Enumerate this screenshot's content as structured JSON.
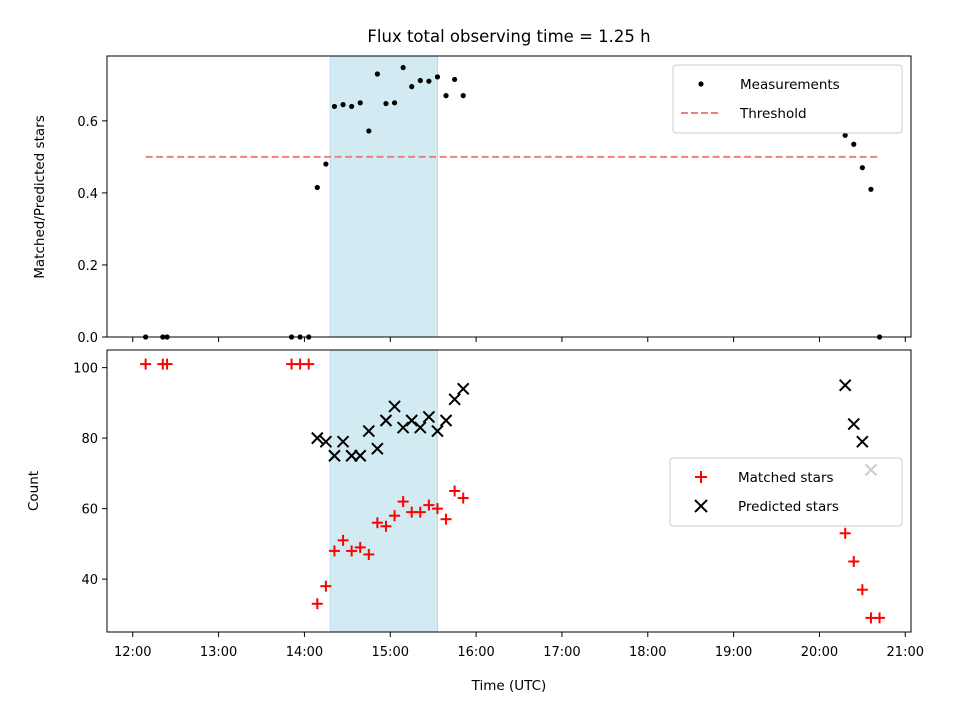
{
  "chart_data": [
    {
      "type": "scatter",
      "title": "Flux total observing time = 1.25 h",
      "ylabel": "Matched/Predicted stars",
      "xlim": [
        "11:42",
        "21:04"
      ],
      "ylim": [
        0,
        0.78
      ],
      "xticks": [
        "12:00",
        "13:00",
        "14:00",
        "15:00",
        "16:00",
        "17:00",
        "18:00",
        "19:00",
        "20:00",
        "21:00"
      ],
      "yticks": [
        0.0,
        0.2,
        0.4,
        0.6
      ],
      "ytick_labels": [
        "0.0",
        "0.2",
        "0.4",
        "0.6"
      ],
      "shaded_span": [
        "14:18",
        "15:33"
      ],
      "shade_color": "#add8e6",
      "legend_position": "top-right",
      "series": [
        {
          "name": "Measurements",
          "type": "scatter",
          "marker": "dot",
          "color": "#000000",
          "points": [
            [
              "12:09",
              0.0
            ],
            [
              "12:21",
              0.0
            ],
            [
              "12:24",
              0.0
            ],
            [
              "13:51",
              0.0
            ],
            [
              "13:57",
              0.0
            ],
            [
              "14:03",
              0.0
            ],
            [
              "14:09",
              0.415
            ],
            [
              "14:15",
              0.48
            ],
            [
              "14:21",
              0.64
            ],
            [
              "14:27",
              0.645
            ],
            [
              "14:33",
              0.64
            ],
            [
              "14:39",
              0.65
            ],
            [
              "14:45",
              0.572
            ],
            [
              "14:51",
              0.73
            ],
            [
              "14:57",
              0.648
            ],
            [
              "15:03",
              0.65
            ],
            [
              "15:09",
              0.748
            ],
            [
              "15:15",
              0.695
            ],
            [
              "15:21",
              0.712
            ],
            [
              "15:27",
              0.71
            ],
            [
              "15:33",
              0.722
            ],
            [
              "15:39",
              0.67
            ],
            [
              "15:45",
              0.715
            ],
            [
              "15:51",
              0.67
            ],
            [
              "20:18",
              0.56
            ],
            [
              "20:24",
              0.535
            ],
            [
              "20:30",
              0.47
            ],
            [
              "20:36",
              0.41
            ],
            [
              "20:42",
              0.0
            ]
          ]
        },
        {
          "name": "Threshold",
          "type": "line",
          "style": "dashed",
          "color": "#f08080",
          "points": [
            [
              "12:09",
              0.5
            ],
            [
              "20:42",
              0.5
            ]
          ]
        }
      ]
    },
    {
      "type": "scatter",
      "title": "",
      "xlabel": "Time (UTC)",
      "ylabel": "Count",
      "xlim": [
        "11:42",
        "21:04"
      ],
      "ylim": [
        25,
        105
      ],
      "xticks": [
        "12:00",
        "13:00",
        "14:00",
        "15:00",
        "16:00",
        "17:00",
        "18:00",
        "19:00",
        "20:00",
        "21:00"
      ],
      "yticks": [
        40,
        60,
        80,
        100
      ],
      "shaded_span": [
        "14:18",
        "15:33"
      ],
      "shade_color": "#add8e6",
      "legend_position": "center-right",
      "series": [
        {
          "name": "Matched stars",
          "type": "scatter",
          "marker": "plus",
          "color": "#ff0000",
          "points": [
            [
              "12:09",
              101
            ],
            [
              "12:21",
              101
            ],
            [
              "12:24",
              101
            ],
            [
              "13:51",
              101
            ],
            [
              "13:57",
              101
            ],
            [
              "14:03",
              101
            ],
            [
              "14:09",
              33
            ],
            [
              "14:15",
              38
            ],
            [
              "14:21",
              48
            ],
            [
              "14:27",
              51
            ],
            [
              "14:33",
              48
            ],
            [
              "14:39",
              49
            ],
            [
              "14:45",
              47
            ],
            [
              "14:51",
              56
            ],
            [
              "14:57",
              55
            ],
            [
              "15:03",
              58
            ],
            [
              "15:09",
              62
            ],
            [
              "15:15",
              59
            ],
            [
              "15:21",
              59
            ],
            [
              "15:27",
              61
            ],
            [
              "15:33",
              60
            ],
            [
              "15:39",
              57
            ],
            [
              "15:45",
              65
            ],
            [
              "15:51",
              63
            ],
            [
              "20:18",
              53
            ],
            [
              "20:24",
              45
            ],
            [
              "20:30",
              37
            ],
            [
              "20:36",
              29
            ],
            [
              "20:42",
              29
            ]
          ]
        },
        {
          "name": "Predicted stars",
          "type": "scatter",
          "marker": "x",
          "color": "#000000",
          "points": [
            [
              "14:09",
              80
            ],
            [
              "14:15",
              79
            ],
            [
              "14:21",
              75
            ],
            [
              "14:27",
              79
            ],
            [
              "14:33",
              75
            ],
            [
              "14:39",
              75
            ],
            [
              "14:45",
              82
            ],
            [
              "14:51",
              77
            ],
            [
              "14:57",
              85
            ],
            [
              "15:03",
              89
            ],
            [
              "15:09",
              83
            ],
            [
              "15:15",
              85
            ],
            [
              "15:21",
              83
            ],
            [
              "15:27",
              86
            ],
            [
              "15:33",
              82
            ],
            [
              "15:39",
              85
            ],
            [
              "15:45",
              91
            ],
            [
              "15:51",
              94
            ],
            [
              "20:18",
              95
            ],
            [
              "20:24",
              84
            ],
            [
              "20:30",
              79
            ],
            [
              "20:36",
              71
            ]
          ]
        }
      ]
    }
  ]
}
